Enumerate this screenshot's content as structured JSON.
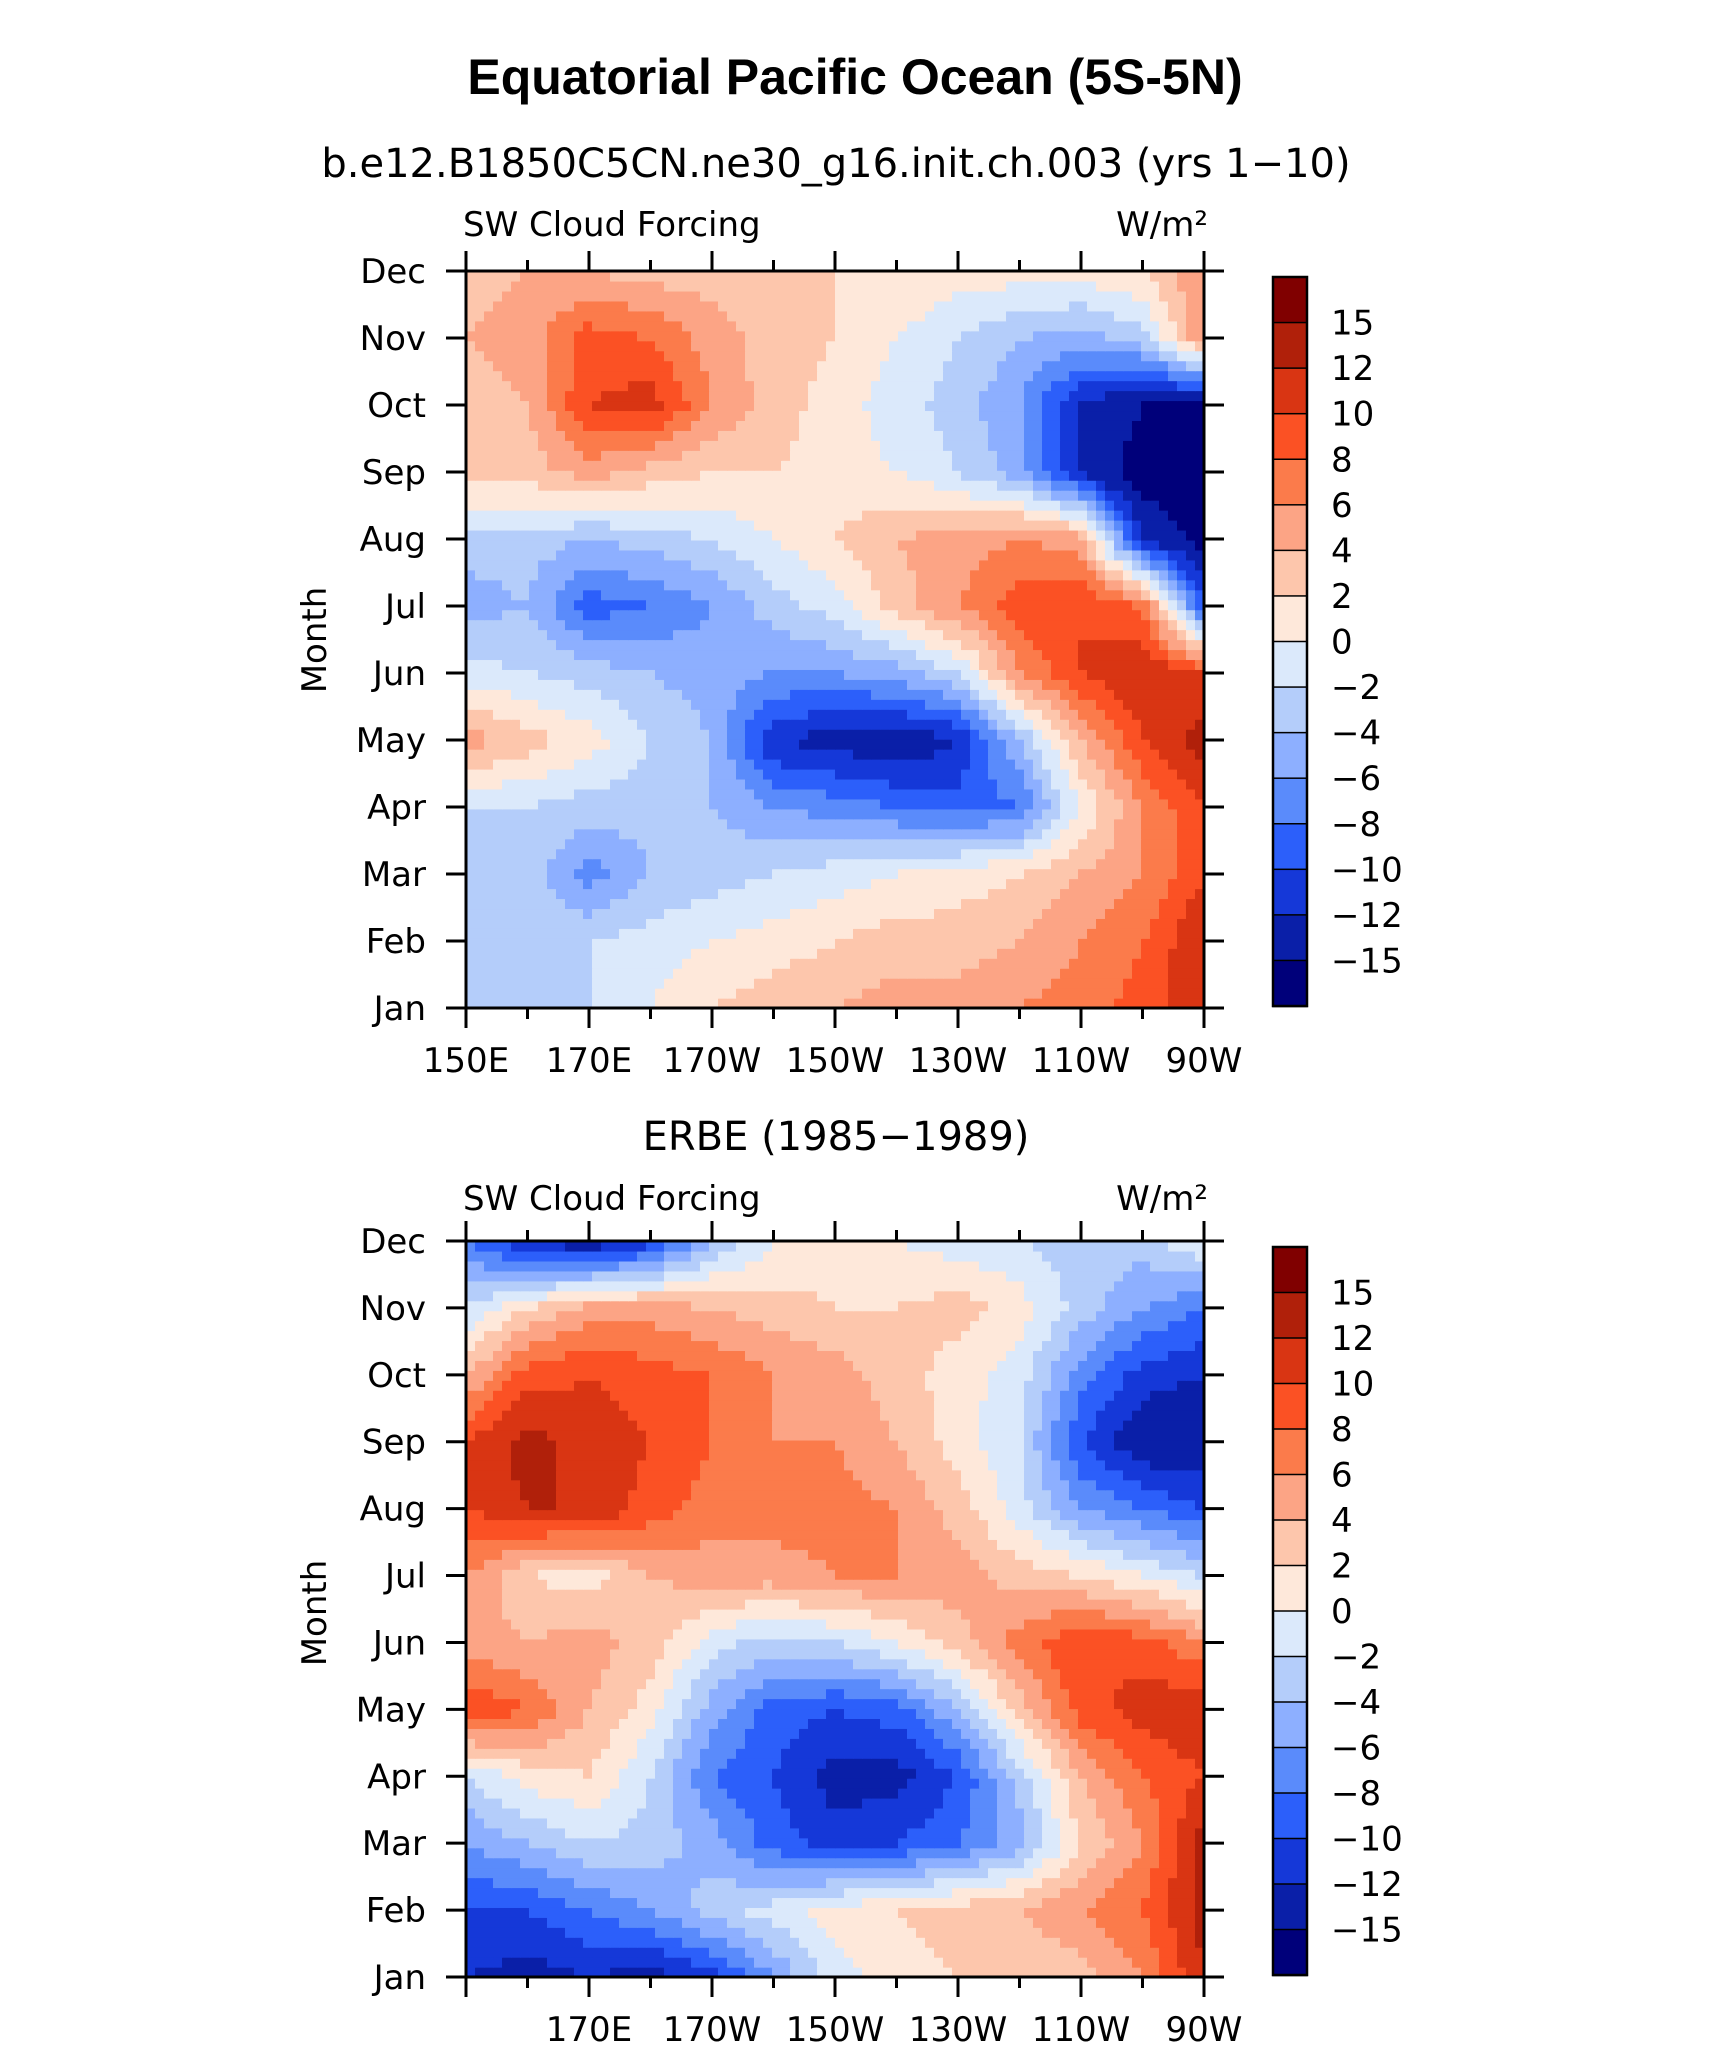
{
  "title": "Equatorial Pacific Ocean (5S-5N)",
  "colorbar": {
    "levels": [
      "15",
      "12",
      "10",
      "8",
      "6",
      "4",
      "2",
      "0",
      "−2",
      "−4",
      "−6",
      "−8",
      "−10",
      "−12",
      "−15"
    ],
    "colors": [
      "#800000",
      "#b0200a",
      "#d93513",
      "#fb5124",
      "#fb7b4b",
      "#fca485",
      "#fdc6ac",
      "#fee8da",
      "#dbe9fb",
      "#b4cdfa",
      "#8dafff",
      "#5a8bfb",
      "#2c5ffa",
      "#1538d8",
      "#0a1fa8",
      "#00007a"
    ]
  },
  "chart_data": [
    {
      "type": "heatmap",
      "subtitle": "b.e12.B1850C5CN.ne30_g16.init.ch.003 (yrs 1−10)",
      "left_label": "SW Cloud Forcing",
      "right_label": "W/m²",
      "ylabel": "Month",
      "x_ticks": [
        "150E",
        "170E",
        "170W",
        "150W",
        "130W",
        "110W",
        "90W"
      ],
      "y_ticks": [
        "Jan",
        "Feb",
        "Mar",
        "Apr",
        "May",
        "Jun",
        "Jul",
        "Aug",
        "Sep",
        "Oct",
        "Nov",
        "Dec"
      ],
      "x_lon": [
        150,
        160,
        170,
        180,
        190,
        200,
        210,
        220,
        230,
        240,
        250,
        260,
        270
      ],
      "months": [
        "Jan",
        "Feb",
        "Mar",
        "Apr",
        "May",
        "Jun",
        "Jul",
        "Aug",
        "Sep",
        "Oct",
        "Nov",
        "Dec"
      ],
      "values": [
        [
          -4,
          -3,
          -2,
          0,
          2,
          3,
          4,
          5,
          5,
          6,
          7,
          9,
          12
        ],
        [
          -4,
          -3,
          -2,
          -1,
          0,
          1,
          2,
          3,
          3,
          4,
          6,
          8,
          12
        ],
        [
          -3,
          -3,
          -7,
          -4,
          -3,
          -2,
          -1,
          0,
          1,
          2,
          4,
          6,
          10
        ],
        [
          -2,
          -2,
          -3,
          -3,
          -4,
          -6,
          -7,
          -8,
          -9,
          -8,
          0,
          6,
          10
        ],
        [
          5,
          3,
          1,
          -2,
          -4,
          -12,
          -13,
          -14,
          -12,
          -4,
          4,
          10,
          13
        ],
        [
          -1,
          -2,
          -3,
          -4,
          -5,
          -6,
          -6,
          -5,
          -2,
          6,
          10,
          12,
          10
        ],
        [
          -5,
          -4,
          -9,
          -8,
          -6,
          -3,
          -1,
          3,
          6,
          9,
          10,
          8,
          -10
        ],
        [
          -3,
          -3,
          -4,
          -3,
          -2,
          0,
          2,
          4,
          5,
          6,
          5,
          -12,
          -16
        ],
        [
          3,
          3,
          5,
          3,
          2,
          2,
          1,
          0,
          -2,
          -5,
          -12,
          -17,
          -17
        ],
        [
          3,
          4,
          10,
          11,
          6,
          3,
          1,
          -1,
          -3,
          -6,
          -12,
          -15,
          -15
        ],
        [
          4,
          5,
          9,
          8,
          5,
          3,
          2,
          0,
          -2,
          -4,
          -5,
          -3,
          6
        ],
        [
          3,
          4,
          4,
          3,
          3,
          2,
          2,
          2,
          1,
          1,
          1,
          2,
          6
        ]
      ]
    },
    {
      "type": "heatmap",
      "subtitle": "ERBE (1985−1989)",
      "left_label": "SW Cloud Forcing",
      "right_label": "W/m²",
      "ylabel": "Month",
      "x_ticks": [
        "170E",
        "170W",
        "150W",
        "130W",
        "110W",
        "90W"
      ],
      "y_ticks": [
        "Jan",
        "Feb",
        "Mar",
        "Apr",
        "May",
        "Jun",
        "Jul",
        "Aug",
        "Sep",
        "Oct",
        "Nov",
        "Dec"
      ],
      "x_lon": [
        150,
        160,
        170,
        180,
        190,
        200,
        210,
        220,
        230,
        240,
        250,
        260,
        270
      ],
      "months": [
        "Jan",
        "Feb",
        "Mar",
        "Apr",
        "May",
        "Jun",
        "Jul",
        "Aug",
        "Sep",
        "Oct",
        "Nov",
        "Dec"
      ],
      "values": [
        [
          -12,
          -13,
          -12,
          -13,
          -11,
          -6,
          -1,
          1,
          2,
          2,
          3,
          6,
          12
        ],
        [
          -10,
          -10,
          -8,
          -6,
          -3,
          -1,
          1,
          2,
          3,
          4,
          6,
          8,
          13
        ],
        [
          -6,
          -4,
          -2,
          -3,
          -5,
          -9,
          -11,
          -10,
          -8,
          -5,
          2,
          6,
          13
        ],
        [
          -2,
          1,
          2,
          -2,
          -8,
          -10,
          -13,
          -13,
          -10,
          -3,
          4,
          8,
          10
        ],
        [
          10,
          8,
          4,
          1,
          -5,
          -9,
          -10,
          -9,
          -4,
          3,
          9,
          11,
          12
        ],
        [
          5,
          4,
          5,
          3,
          -1,
          -3,
          -2,
          0,
          3,
          7,
          10,
          9,
          6
        ],
        [
          6,
          2,
          1,
          4,
          5,
          5,
          6,
          6,
          5,
          3,
          2,
          0,
          -2
        ],
        [
          10,
          12,
          12,
          9,
          7,
          7,
          7,
          6,
          3,
          -1,
          -6,
          -8,
          -10
        ],
        [
          10,
          13,
          11,
          10,
          8,
          6,
          6,
          4,
          1,
          -2,
          -10,
          -14,
          -14
        ],
        [
          4,
          9,
          10,
          9,
          8,
          6,
          5,
          3,
          1,
          -1,
          -7,
          -11,
          -12
        ],
        [
          -2,
          2,
          5,
          5,
          4,
          3,
          2,
          2,
          3,
          1,
          -3,
          -6,
          -8
        ],
        [
          -8,
          -12,
          -14,
          -11,
          -4,
          0,
          1,
          0,
          -1,
          -2,
          -3,
          -3,
          0
        ]
      ]
    }
  ]
}
